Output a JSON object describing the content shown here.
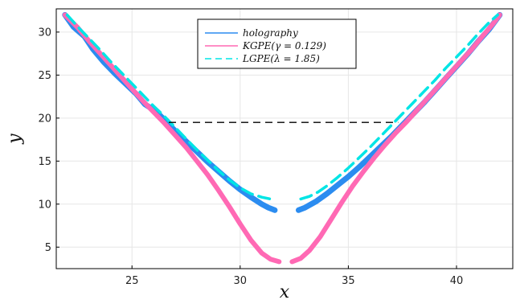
{
  "chart_data": {
    "type": "line",
    "xlabel": "x",
    "ylabel": "y",
    "xlim": [
      21.5,
      42.6
    ],
    "ylim": [
      2.5,
      32.7
    ],
    "xticks": [
      25,
      30,
      35,
      40
    ],
    "yticks": [
      5,
      10,
      15,
      20,
      25,
      30
    ],
    "grid": true,
    "legend_position": "top-center",
    "reference_line": {
      "y": 19.5,
      "x_range": [
        26.7,
        37.3
      ],
      "style": "dashed",
      "color": "#000000"
    },
    "series": [
      {
        "name": "holography",
        "legend_label": "holography",
        "color": "#2b8cf0",
        "style": "solid",
        "segments": [
          {
            "x": [
              21.9,
              22.3,
              22.8,
              23.2,
              23.7,
              24.2,
              24.7,
              25.2,
              25.6,
              26.1,
              26.5,
              27.0,
              27.5,
              28.0,
              28.5,
              29.0,
              29.5,
              30.0,
              30.5,
              31.0,
              31.3,
              31.6
            ],
            "y": [
              32.0,
              30.6,
              29.5,
              28.0,
              26.5,
              25.2,
              24.0,
              22.8,
              21.6,
              20.8,
              19.8,
              18.5,
              17.3,
              16.1,
              14.9,
              13.8,
              12.7,
              11.7,
              10.8,
              10.0,
              9.6,
              9.3
            ]
          },
          {
            "x": [
              32.7,
              33.0,
              33.5,
              34.0,
              34.5,
              35.0,
              35.5,
              36.0,
              36.5,
              37.0,
              37.5,
              38.0,
              38.5,
              39.0,
              39.5,
              40.0,
              40.5,
              41.0,
              41.5,
              42.0
            ],
            "y": [
              9.3,
              9.6,
              10.3,
              11.2,
              12.2,
              13.2,
              14.3,
              15.5,
              16.7,
              17.9,
              19.2,
              20.5,
              21.8,
              23.2,
              24.6,
              26.0,
              27.4,
              28.9,
              30.3,
              32.0
            ]
          }
        ]
      },
      {
        "name": "KGPE(γ = 0.129)",
        "legend_label": "KGPE(γ = 0.129)",
        "color": "#ff69b4",
        "style": "solid",
        "segments": [
          {
            "x": [
              21.9,
              22.5,
              23.0,
              23.5,
              24.0,
              24.5,
              25.0,
              25.5,
              26.0,
              26.5,
              27.0,
              27.5,
              28.0,
              28.5,
              29.0,
              29.5,
              30.0,
              30.5,
              31.0,
              31.4,
              31.8
            ],
            "y": [
              32.0,
              30.5,
              29.0,
              27.6,
              26.2,
              24.8,
              23.4,
              22.0,
              20.7,
              19.4,
              18.0,
              16.6,
              15.0,
              13.4,
              11.6,
              9.7,
              7.7,
              5.8,
              4.3,
              3.6,
              3.3
            ]
          },
          {
            "x": [
              32.4,
              32.8,
              33.2,
              33.7,
              34.2,
              34.7,
              35.2,
              35.7,
              36.2,
              36.7,
              37.2,
              37.7,
              38.2,
              38.7,
              39.2,
              39.7,
              40.2,
              40.7,
              41.2,
              41.7,
              42.0
            ],
            "y": [
              3.3,
              3.7,
              4.6,
              6.2,
              8.2,
              10.2,
              12.1,
              13.8,
              15.4,
              16.9,
              18.3,
              19.6,
              21.0,
              22.4,
              23.8,
              25.2,
              26.6,
              28.0,
              29.5,
              31.0,
              32.0
            ]
          }
        ]
      },
      {
        "name": "LGPE(λ = 1.85)",
        "legend_label": "LGPE(λ = 1.85)",
        "color": "#00e5e5",
        "style": "dashed",
        "segments": [
          {
            "x": [
              22.0,
              22.5,
              23.0,
              23.5,
              24.0,
              24.5,
              25.0,
              25.5,
              26.0,
              26.5,
              27.0,
              27.5,
              28.0,
              28.5,
              29.0,
              29.5,
              30.0,
              30.5,
              31.0,
              31.4
            ],
            "y": [
              32.0,
              30.6,
              29.3,
              28.0,
              26.6,
              25.3,
              24.0,
              22.7,
              21.4,
              20.2,
              18.9,
              17.6,
              16.3,
              15.1,
              13.9,
              12.8,
              11.9,
              11.2,
              10.8,
              10.6
            ]
          },
          {
            "x": [
              32.8,
              33.2,
              33.6,
              34.0,
              34.5,
              35.0,
              35.5,
              36.0,
              36.5,
              37.0,
              37.5,
              38.0,
              38.5,
              39.0,
              39.5,
              40.0,
              40.5,
              41.0,
              41.5,
              41.9
            ],
            "y": [
              10.6,
              10.9,
              11.4,
              12.1,
              13.1,
              14.2,
              15.4,
              16.6,
              17.9,
              19.2,
              20.5,
              21.8,
              23.1,
              24.4,
              25.8,
              27.1,
              28.4,
              29.8,
              31.1,
              32.0
            ]
          }
        ]
      }
    ]
  }
}
